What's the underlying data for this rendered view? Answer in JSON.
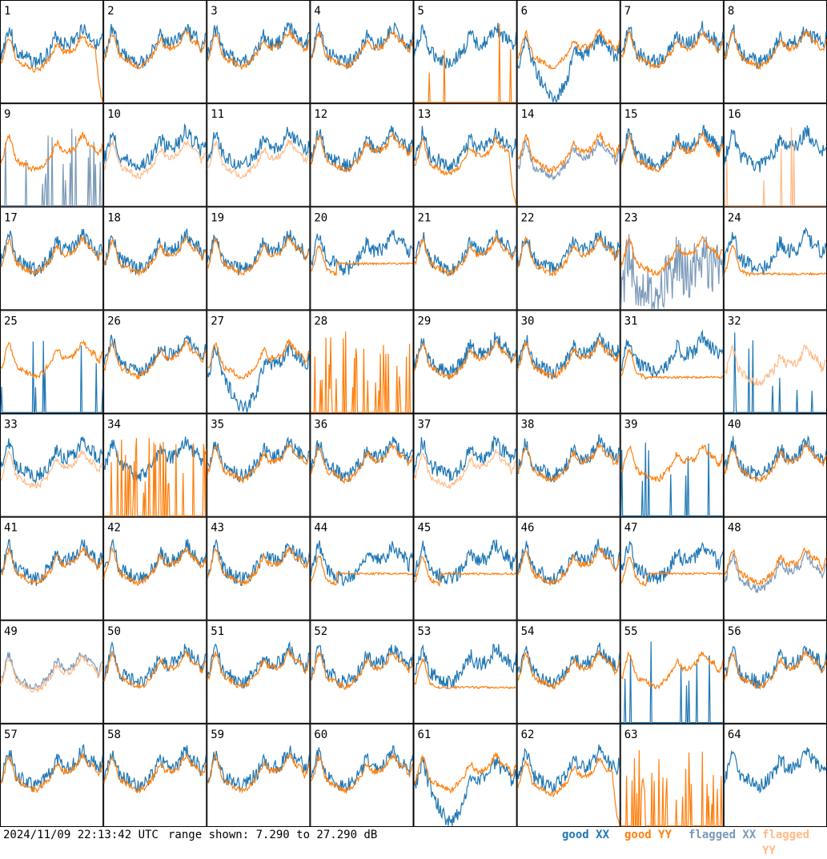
{
  "chart_data": {
    "type": "line",
    "description_grid": "8x8 small multiples, one panel per antenna",
    "panels": [
      {
        "id": "1",
        "state": "yy_drop_end"
      },
      {
        "id": "2",
        "state": "normal"
      },
      {
        "id": "3",
        "state": "normal"
      },
      {
        "id": "4",
        "state": "normal"
      },
      {
        "id": "5",
        "state": "yy_missing_spikes"
      },
      {
        "id": "6",
        "state": "xx_dip"
      },
      {
        "id": "7",
        "state": "normal"
      },
      {
        "id": "8",
        "state": "normal"
      },
      {
        "id": "9",
        "state": "flagged_xx_spikes"
      },
      {
        "id": "10",
        "state": "flagged_yy"
      },
      {
        "id": "11",
        "state": "flagged_yy"
      },
      {
        "id": "12",
        "state": "normal"
      },
      {
        "id": "13",
        "state": "yy_drop_end"
      },
      {
        "id": "14",
        "state": "flagged_xx"
      },
      {
        "id": "15",
        "state": "normal"
      },
      {
        "id": "16",
        "state": "flagged_yy_spikes"
      },
      {
        "id": "17",
        "state": "normal"
      },
      {
        "id": "18",
        "state": "normal"
      },
      {
        "id": "19",
        "state": "normal"
      },
      {
        "id": "20",
        "state": "yy_flat"
      },
      {
        "id": "21",
        "state": "normal"
      },
      {
        "id": "22",
        "state": "normal"
      },
      {
        "id": "23",
        "state": "flagged_xx_noisy"
      },
      {
        "id": "24",
        "state": "yy_low"
      },
      {
        "id": "25",
        "state": "xx_missing_spikes"
      },
      {
        "id": "26",
        "state": "normal"
      },
      {
        "id": "27",
        "state": "xx_dip"
      },
      {
        "id": "28",
        "state": "yy_spikes_only"
      },
      {
        "id": "29",
        "state": "normal"
      },
      {
        "id": "30",
        "state": "normal"
      },
      {
        "id": "31",
        "state": "yy_low"
      },
      {
        "id": "32",
        "state": "flagged_yy_xx_spikes"
      },
      {
        "id": "33",
        "state": "flagged_yy"
      },
      {
        "id": "34",
        "state": "yy_spikes_bottom"
      },
      {
        "id": "35",
        "state": "normal"
      },
      {
        "id": "36",
        "state": "normal"
      },
      {
        "id": "37",
        "state": "flagged_yy"
      },
      {
        "id": "38",
        "state": "normal"
      },
      {
        "id": "39",
        "state": "xx_missing_spikes"
      },
      {
        "id": "40",
        "state": "normal"
      },
      {
        "id": "41",
        "state": "normal"
      },
      {
        "id": "42",
        "state": "normal"
      },
      {
        "id": "43",
        "state": "normal"
      },
      {
        "id": "44",
        "state": "yy_flat"
      },
      {
        "id": "45",
        "state": "yy_flat"
      },
      {
        "id": "46",
        "state": "normal"
      },
      {
        "id": "47",
        "state": "yy_flat"
      },
      {
        "id": "48",
        "state": "flagged_xx"
      },
      {
        "id": "49",
        "state": "flagged_both"
      },
      {
        "id": "50",
        "state": "normal"
      },
      {
        "id": "51",
        "state": "normal"
      },
      {
        "id": "52",
        "state": "normal"
      },
      {
        "id": "53",
        "state": "yy_low"
      },
      {
        "id": "54",
        "state": "normal"
      },
      {
        "id": "55",
        "state": "xx_missing_spikes"
      },
      {
        "id": "56",
        "state": "normal"
      },
      {
        "id": "57",
        "state": "normal"
      },
      {
        "id": "58",
        "state": "normal"
      },
      {
        "id": "59",
        "state": "normal"
      },
      {
        "id": "60",
        "state": "normal"
      },
      {
        "id": "61",
        "state": "xx_dip"
      },
      {
        "id": "62",
        "state": "yy_low_end"
      },
      {
        "id": "63",
        "state": "spikes_only"
      },
      {
        "id": "64",
        "state": "xx_only"
      }
    ],
    "ylim_db": [
      7.29,
      27.29
    ]
  },
  "footer": {
    "timestamp": "2024/11/09 22:13:42 UTC",
    "range_text": "range shown: 7.290 to 27.290 dB"
  },
  "legend": [
    {
      "key": "good_xx",
      "label": "good XX",
      "color": "#1f77b4"
    },
    {
      "key": "good_yy",
      "label": "good YY",
      "color": "#ff7f0e"
    },
    {
      "key": "flagged_xx",
      "label": "flagged XX",
      "color": "#7a99b8"
    },
    {
      "key": "flagged_yy",
      "label": "flagged YY",
      "color": "#ffbb88"
    }
  ]
}
